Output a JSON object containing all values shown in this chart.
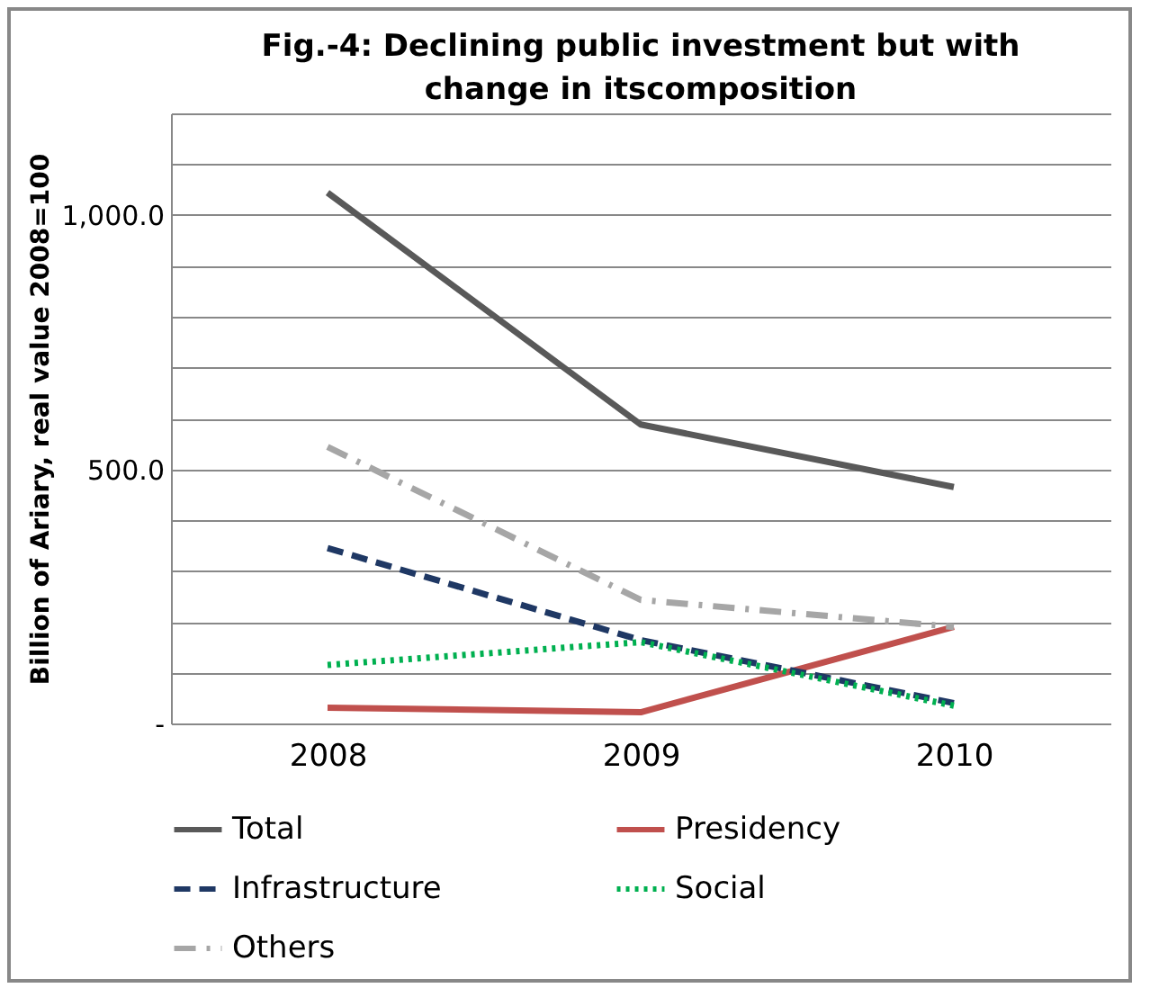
{
  "chart_data": {
    "type": "line",
    "title": "Fig.-4: Declining public investment but with change in itscomposition",
    "ylabel": "Billion of Ariary, real value 2008=100",
    "categories": [
      "2008",
      "2009",
      "2010"
    ],
    "series": [
      {
        "name": "Total",
        "color": "#595959",
        "line_style": "solid",
        "values": [
          1044,
          588,
          465
        ]
      },
      {
        "name": "Presidency",
        "color": "#c0504d",
        "line_style": "solid",
        "values": [
          31,
          22,
          190
        ]
      },
      {
        "name": "Infrastructure",
        "color": "#1f3864",
        "line_style": "dashed",
        "values": [
          345,
          164,
          40
        ]
      },
      {
        "name": "Social",
        "color": "#00b050",
        "line_style": "dotted",
        "values": [
          115,
          160,
          35
        ]
      },
      {
        "name": "Others",
        "color": "#a6a6a6",
        "line_style": "dashdot",
        "values": [
          544,
          243,
          190
        ]
      }
    ],
    "ylim": [
      0,
      1200
    ],
    "yticks": [
      {
        "value": 0,
        "label": "-"
      },
      {
        "value": 100,
        "label": null
      },
      {
        "value": 200,
        "label": null
      },
      {
        "value": 300,
        "label": null
      },
      {
        "value": 400,
        "label": null
      },
      {
        "value": 500,
        "label": "500.0"
      },
      {
        "value": 600,
        "label": null
      },
      {
        "value": 700,
        "label": null
      },
      {
        "value": 800,
        "label": null
      },
      {
        "value": 900,
        "label": null
      },
      {
        "value": 1000,
        "label": "1,000.0"
      },
      {
        "value": 1100,
        "label": null
      },
      {
        "value": 1200,
        "label": null
      }
    ],
    "grid": "y",
    "legend": "bottom",
    "marker": "none"
  }
}
